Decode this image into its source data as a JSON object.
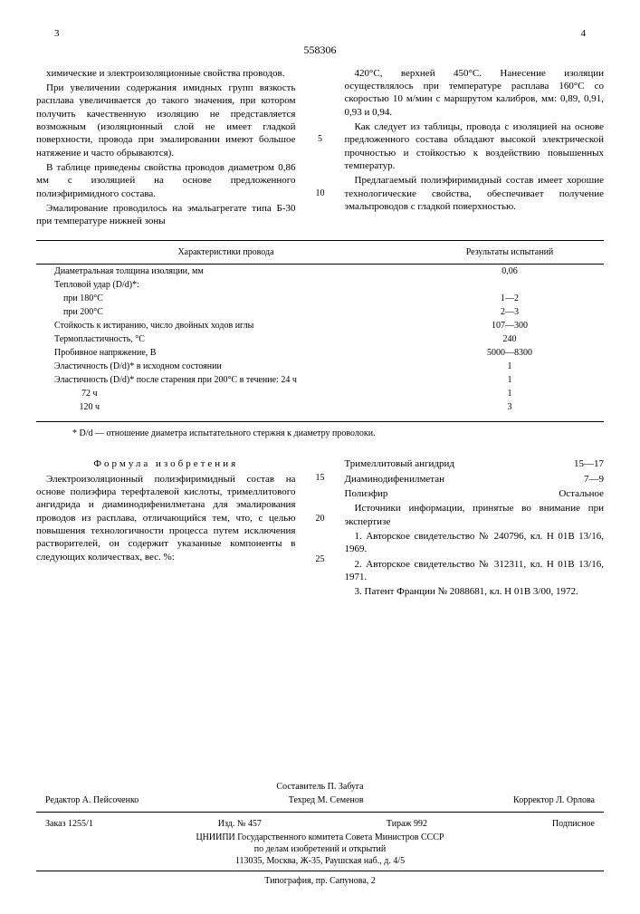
{
  "doc_number": "558306",
  "page_left": "3",
  "page_right": "4",
  "line_markers": [
    "5",
    "10",
    "15",
    "20",
    "25"
  ],
  "col_left": {
    "p1": "химические и электроизоляционные свойства проводов.",
    "p2": "При увеличении содержания имидных групп вязкость расплава увеличивается до такого значения, при котором получить качественную изоляцию не представляется возможным (изоляционный слой не имеет гладкой поверхности, провода при эмалировании имеют большое натяжение и часто обрываются).",
    "p3": "В таблице приведены свойства проводов диаметром 0,86 мм с изоляцией на основе предложенного полиэфиримидного состава.",
    "p4": "Эмалирование проводилось на эмальагрегате типа Б-30 при температуре нижней зоны"
  },
  "col_right": {
    "p1": "420°С, верхней 450°С. Нанесение изоляции осуществлялось при температуре расплава 160°С со скоростью 10 м/мин с маршрутом калибров, мм: 0,89, 0,91, 0,93 и 0,94.",
    "p2": "Как следует из таблицы, провода с изоляцией на основе предложенного состава обладают высокой электрической прочностью и стойкостью к воздействию повышенных температур.",
    "p3": "Предлагаемый полиэфиримидный состав имеет хорошие технологические свойства, обеспечивает получение эмальпроводов с гладкой поверхностью."
  },
  "table": {
    "head_left": "Характеристики провода",
    "head_right": "Результаты испытаний",
    "rows": [
      [
        "Диаметральная толщина изоляции, мм",
        "0,06"
      ],
      [
        "Тепловой удар (D/d)*:",
        ""
      ],
      [
        "    при 180°С",
        "1—2"
      ],
      [
        "    при 200°С",
        "2—3"
      ],
      [
        "Стойкость к истиранию, число двойных ходов иглы",
        "107—300"
      ],
      [
        "Термопластичность, °С",
        "240"
      ],
      [
        "Пробивное напряжение, В",
        "5000—8300"
      ],
      [
        "Эластичность (D/d)* в исходном состоянии",
        "1"
      ],
      [
        "Эластичность (D/d)* после старения при 200°С в течение: 24 ч",
        "1"
      ],
      [
        "            72 ч",
        "1"
      ],
      [
        "           120 ч",
        "3"
      ]
    ],
    "note": "* D/d — отношение диаметра испытательного стержня к диаметру проволоки."
  },
  "formula": {
    "title": "Формула изобретения",
    "body": "Электроизоляционный полиэфиримидный состав на основе полиэфира терефталевой кислоты, тримеллитового ангидрида и диаминодифенилметана для эмалирования проводов из расплава, отличающийся тем, что, с целью повышения технологичности процесса путем исключения растворителей, он содержит указанные компоненты в следующих количествах, вес. %:"
  },
  "ingredients": [
    [
      "Тримеллитовый ангидрид",
      "15—17"
    ],
    [
      "Диаминодифенилметан",
      "7—9"
    ],
    [
      "Полиэфир",
      "Остальное"
    ]
  ],
  "sources": {
    "title": "Источники информации, принятые во внимание при экспертизе",
    "items": [
      "1. Авторское свидетельство № 240796, кл. Н 01В 13/16, 1969.",
      "2. Авторское свидетельство № 312311, кл. Н 01В 13/16, 1971.",
      "3. Патент Франции № 2088681, кл. Н 01В 3/00, 1972."
    ]
  },
  "footer": {
    "compiler": "Составитель П. Забуга",
    "editor": "Редактор А. Пейсоченко",
    "techred": "Техред М. Семенов",
    "corrector": "Корректор Л. Орлова",
    "order": "Заказ 1255/1",
    "issue": "Изд. № 457",
    "copies": "Тираж 992",
    "sub": "Подписное",
    "org1": "ЦНИИПИ Государственного комитета Совета Министров СССР",
    "org2": "по делам изобретений и открытий",
    "addr": "113035, Москва, Ж-35, Раушская наб., д. 4/5",
    "print": "Типография, пр. Сапунова, 2"
  }
}
